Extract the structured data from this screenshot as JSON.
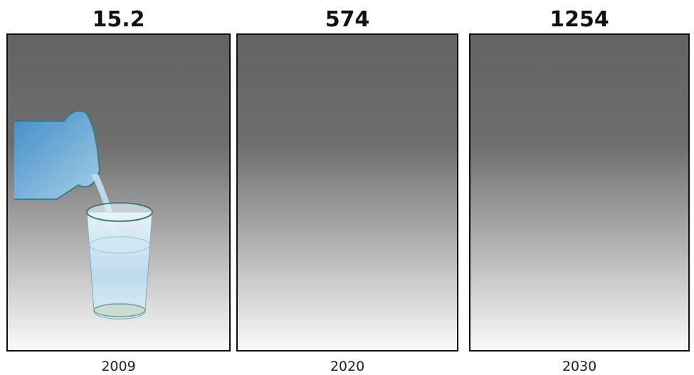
{
  "chart_data": {
    "type": "pictograph",
    "categories": [
      "2009",
      "2020",
      "2030"
    ],
    "values": [
      15.2,
      574,
      1254
    ]
  }
}
